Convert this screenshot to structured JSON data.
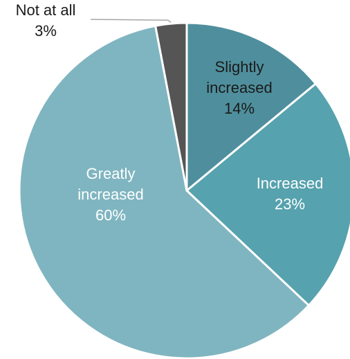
{
  "chart_data": {
    "type": "pie",
    "title": "",
    "slices": [
      {
        "label_lines": [
          "Slightly",
          "increased"
        ],
        "value": 14,
        "value_label": "14%",
        "color": "#4f8f9d",
        "label_color": "#1a1a1a"
      },
      {
        "label_lines": [
          "Increased"
        ],
        "value": 23,
        "value_label": "23%",
        "color": "#56a2ae",
        "label_color": "#ffffff"
      },
      {
        "label_lines": [
          "Greatly",
          "increased"
        ],
        "value": 60,
        "value_label": "60%",
        "color": "#7fb5c0",
        "label_color": "#ffffff"
      },
      {
        "label_lines": [
          "Not at all"
        ],
        "value": 3,
        "value_label": "3%",
        "color": "#555555",
        "label_color": "#1a1a1a"
      }
    ],
    "start_angle_deg": 0,
    "direction": "clockwise",
    "slice_border_color": "#ffffff",
    "leader_line_color": "#a6a6a6"
  }
}
